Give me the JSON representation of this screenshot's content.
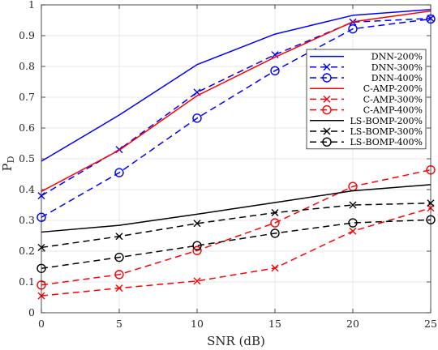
{
  "chart_data": {
    "type": "line",
    "xlabel": "SNR (dB)",
    "ylabel_main": "P",
    "ylabel_sub": "D",
    "xlim": [
      0,
      25
    ],
    "ylim": [
      0,
      1
    ],
    "x_ticks": [
      0,
      5,
      10,
      15,
      20,
      25
    ],
    "y_ticks": [
      0,
      0.1,
      0.2,
      0.3,
      0.4,
      0.5,
      0.6,
      0.7,
      0.8,
      0.9,
      1
    ],
    "y_tick_labels": [
      "0",
      "0.1",
      "0.2",
      "0.3",
      "0.4",
      "0.5",
      "0.6",
      "0.7",
      "0.8",
      "0.9",
      "1"
    ],
    "grid": true,
    "legend_position": "right-center",
    "x": [
      0,
      5,
      10,
      15,
      20,
      25
    ],
    "series": [
      {
        "name": "DNN-200%",
        "color": "#0000ff",
        "dash": "solid",
        "marker": "none",
        "values": [
          0.492,
          0.642,
          0.806,
          0.905,
          0.966,
          0.985
        ]
      },
      {
        "name": "DNN-300%",
        "color": "#0000ff",
        "dash": "dashed",
        "marker": "x",
        "values": [
          0.38,
          0.53,
          0.716,
          0.838,
          0.944,
          0.956
        ]
      },
      {
        "name": "DNN-400%",
        "color": "#0000ff",
        "dash": "dashed",
        "marker": "circle",
        "values": [
          0.31,
          0.455,
          0.632,
          0.786,
          0.922,
          0.954
        ]
      },
      {
        "name": "C-AMP-200%",
        "color": "#ff0000",
        "dash": "solid",
        "marker": "none",
        "values": [
          0.394,
          0.528,
          0.705,
          0.83,
          0.945,
          0.98
        ]
      },
      {
        "name": "C-AMP-300%",
        "color": "#ff0000",
        "dash": "dashed",
        "marker": "x",
        "values": [
          0.055,
          0.08,
          0.103,
          0.145,
          0.265,
          0.34
        ]
      },
      {
        "name": "C-AMP-400%",
        "color": "#ff0000",
        "dash": "dashed",
        "marker": "circle",
        "values": [
          0.09,
          0.124,
          0.202,
          0.292,
          0.41,
          0.464
        ]
      },
      {
        "name": "LS-BOMP-200%",
        "color": "#000000",
        "dash": "solid",
        "marker": "none",
        "values": [
          0.262,
          0.284,
          0.32,
          0.358,
          0.396,
          0.416
        ]
      },
      {
        "name": "LS-BOMP-300%",
        "color": "#000000",
        "dash": "dashed",
        "marker": "x",
        "values": [
          0.212,
          0.248,
          0.29,
          0.325,
          0.35,
          0.356
        ]
      },
      {
        "name": "LS-BOMP-400%",
        "color": "#000000",
        "dash": "dashed",
        "marker": "circle",
        "values": [
          0.144,
          0.18,
          0.218,
          0.258,
          0.292,
          0.302
        ]
      }
    ]
  }
}
